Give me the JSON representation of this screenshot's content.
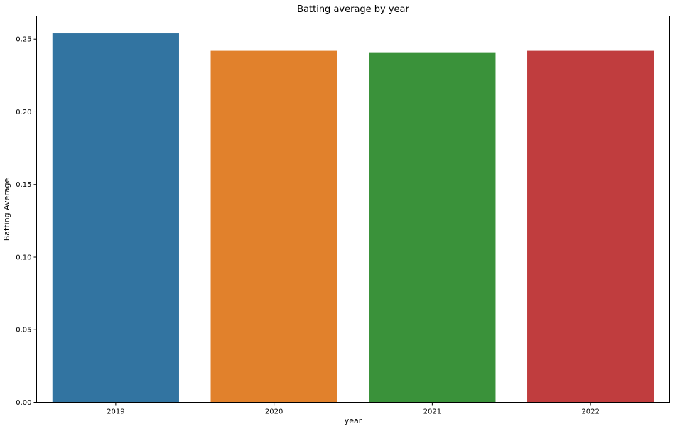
{
  "chart_data": {
    "type": "bar",
    "title": "Batting average by year",
    "xlabel": "year",
    "ylabel": "Batting Average",
    "categories": [
      "2019",
      "2020",
      "2021",
      "2022"
    ],
    "values": [
      0.254,
      0.242,
      0.241,
      0.242
    ],
    "colors": [
      "#3274a1",
      "#e1812c",
      "#3a923a",
      "#c03d3e"
    ],
    "ylim": [
      0,
      0.266
    ],
    "yticks": [
      0.0,
      0.05,
      0.1,
      0.15,
      0.2,
      0.25
    ],
    "ytick_labels": [
      "0.00",
      "0.05",
      "0.10",
      "0.15",
      "0.20",
      "0.25"
    ],
    "grid": false,
    "legend": "none"
  }
}
